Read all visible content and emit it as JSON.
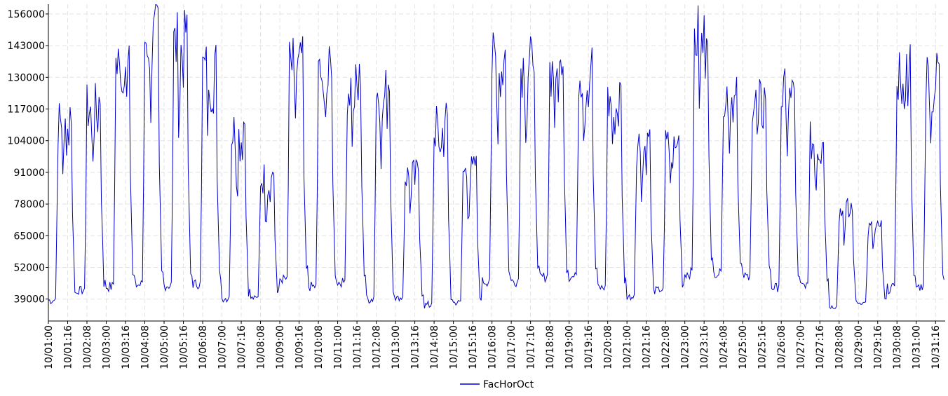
{
  "chart_data": {
    "type": "line",
    "title": "",
    "xlabel": "",
    "ylabel": "",
    "ylim": [
      30000,
      160000
    ],
    "yticks": [
      39000,
      52000,
      65000,
      78000,
      91000,
      104000,
      117000,
      130000,
      143000,
      156000
    ],
    "ytick_labels": [
      "39000",
      "52000",
      "65000",
      "78000",
      "91000",
      "104000",
      "117000",
      "130000",
      "143000",
      "156000"
    ],
    "xtick_labels": [
      "10/01:00",
      "10/01:16",
      "10/02:08",
      "10/03:00",
      "10/03:16",
      "10/04:08",
      "10/05:00",
      "10/05:16",
      "10/06:08",
      "10/07:00",
      "10/07:16",
      "10/08:08",
      "10/09:00",
      "10/09:16",
      "10/10:08",
      "10/11:00",
      "10/11:16",
      "10/12:08",
      "10/13:00",
      "10/13:16",
      "10/14:08",
      "10/15:00",
      "10/15:16",
      "10/16:08",
      "10/17:00",
      "10/17:16",
      "10/18:08",
      "10/19:00",
      "10/19:16",
      "10/20:08",
      "10/21:00",
      "10/21:16",
      "10/22:08",
      "10/23:00",
      "10/23:16",
      "10/24:08",
      "10/25:00",
      "10/25:16",
      "10/26:08",
      "10/27:00",
      "10/27:16",
      "10/28:08",
      "10/29:00",
      "10/29:16",
      "10/30:08",
      "10/31:00",
      "10/31:16"
    ],
    "grid": true,
    "legend": "bottom-center",
    "series": [
      {
        "name": "FacHorOct",
        "color": "#0000cc",
        "day_profiles": [
          {
            "day": "10/01",
            "min": 35000,
            "max": 122000
          },
          {
            "day": "10/02",
            "min": 39000,
            "max": 128000
          },
          {
            "day": "10/03",
            "min": 39500,
            "max": 153000
          },
          {
            "day": "10/04",
            "min": 40000,
            "max": 161000
          },
          {
            "day": "10/05",
            "min": 40000,
            "max": 158000
          },
          {
            "day": "10/06",
            "min": 41000,
            "max": 146000
          },
          {
            "day": "10/07",
            "min": 36000,
            "max": 118000
          },
          {
            "day": "10/08",
            "min": 37000,
            "max": 96000
          },
          {
            "day": "10/09",
            "min": 43000,
            "max": 147000
          },
          {
            "day": "10/10",
            "min": 40000,
            "max": 143000
          },
          {
            "day": "10/11",
            "min": 42000,
            "max": 138000
          },
          {
            "day": "10/12",
            "min": 35000,
            "max": 136000
          },
          {
            "day": "10/13",
            "min": 37000,
            "max": 97000
          },
          {
            "day": "10/14",
            "min": 33000,
            "max": 120000
          },
          {
            "day": "10/15",
            "min": 35000,
            "max": 99000
          },
          {
            "day": "10/16",
            "min": 42000,
            "max": 149000
          },
          {
            "day": "10/17",
            "min": 42000,
            "max": 148000
          },
          {
            "day": "10/18",
            "min": 44000,
            "max": 146000
          },
          {
            "day": "10/19",
            "min": 44000,
            "max": 145000
          },
          {
            "day": "10/20",
            "min": 40000,
            "max": 131000
          },
          {
            "day": "10/21",
            "min": 37000,
            "max": 112000
          },
          {
            "day": "10/22",
            "min": 40000,
            "max": 110000
          },
          {
            "day": "10/23",
            "min": 45000,
            "max": 161000
          },
          {
            "day": "10/24",
            "min": 46000,
            "max": 136000
          },
          {
            "day": "10/25",
            "min": 45000,
            "max": 130000
          },
          {
            "day": "10/26",
            "min": 40000,
            "max": 134000
          },
          {
            "day": "10/27",
            "min": 42000,
            "max": 112000
          },
          {
            "day": "10/28",
            "min": 34000,
            "max": 81000
          },
          {
            "day": "10/29",
            "min": 36000,
            "max": 72000
          },
          {
            "day": "10/30",
            "min": 39000,
            "max": 146000
          },
          {
            "day": "10/31",
            "min": 40000,
            "max": 143000
          }
        ]
      }
    ]
  }
}
